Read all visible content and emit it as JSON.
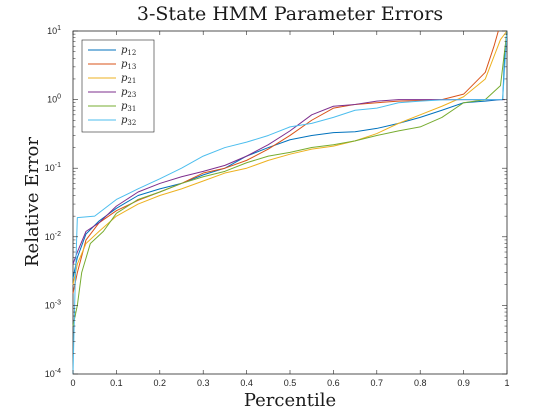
{
  "chart_data": {
    "type": "line",
    "title": "3-State HMM Parameter Errors",
    "xlabel": "Percentile",
    "ylabel": "Relative Error",
    "xlim": [
      0,
      1
    ],
    "ylim": [
      0.0001,
      10
    ],
    "yscale": "log",
    "grid": false,
    "legend_position": "top-left",
    "x_ticks": [
      "0",
      "0.1",
      "0.2",
      "0.3",
      "0.4",
      "0.5",
      "0.6",
      "0.7",
      "0.8",
      "0.9",
      "1"
    ],
    "y_ticks": [
      {
        "base": "10",
        "exp": "1"
      },
      {
        "base": "10",
        "exp": "0"
      },
      {
        "base": "10",
        "exp": "-1"
      },
      {
        "base": "10",
        "exp": "-2"
      },
      {
        "base": "10",
        "exp": "-3"
      },
      {
        "base": "10",
        "exp": "-4"
      }
    ],
    "series": [
      {
        "name": "p",
        "sub": "12",
        "color": "#0072BD",
        "points": [
          [
            0,
            0.0025
          ],
          [
            0.01,
            0.005
          ],
          [
            0.03,
            0.011
          ],
          [
            0.06,
            0.017
          ],
          [
            0.1,
            0.026
          ],
          [
            0.15,
            0.04
          ],
          [
            0.2,
            0.05
          ],
          [
            0.25,
            0.06
          ],
          [
            0.3,
            0.08
          ],
          [
            0.35,
            0.1
          ],
          [
            0.4,
            0.15
          ],
          [
            0.45,
            0.2
          ],
          [
            0.5,
            0.26
          ],
          [
            0.55,
            0.3
          ],
          [
            0.6,
            0.33
          ],
          [
            0.65,
            0.34
          ],
          [
            0.7,
            0.38
          ],
          [
            0.75,
            0.45
          ],
          [
            0.8,
            0.55
          ],
          [
            0.85,
            0.7
          ],
          [
            0.9,
            0.9
          ],
          [
            0.95,
            0.95
          ],
          [
            0.985,
            1.0
          ],
          [
            0.99,
            1.0
          ],
          [
            0.995,
            5
          ],
          [
            1.0,
            10
          ]
        ]
      },
      {
        "name": "p",
        "sub": "13",
        "color": "#D95319",
        "points": [
          [
            0,
            0.0015
          ],
          [
            0.01,
            0.003
          ],
          [
            0.03,
            0.009
          ],
          [
            0.06,
            0.016
          ],
          [
            0.1,
            0.024
          ],
          [
            0.15,
            0.034
          ],
          [
            0.2,
            0.045
          ],
          [
            0.25,
            0.06
          ],
          [
            0.3,
            0.085
          ],
          [
            0.35,
            0.1
          ],
          [
            0.4,
            0.13
          ],
          [
            0.45,
            0.19
          ],
          [
            0.5,
            0.3
          ],
          [
            0.55,
            0.5
          ],
          [
            0.6,
            0.75
          ],
          [
            0.65,
            0.85
          ],
          [
            0.7,
            0.9
          ],
          [
            0.75,
            0.95
          ],
          [
            0.8,
            0.97
          ],
          [
            0.85,
            1.0
          ],
          [
            0.9,
            1.2
          ],
          [
            0.95,
            2.5
          ],
          [
            0.97,
            6
          ],
          [
            0.98,
            10
          ]
        ]
      },
      {
        "name": "p",
        "sub": "21",
        "color": "#EDB120",
        "points": [
          [
            0,
            0.002
          ],
          [
            0.01,
            0.004
          ],
          [
            0.03,
            0.008
          ],
          [
            0.06,
            0.012
          ],
          [
            0.1,
            0.02
          ],
          [
            0.15,
            0.03
          ],
          [
            0.2,
            0.04
          ],
          [
            0.25,
            0.05
          ],
          [
            0.3,
            0.065
          ],
          [
            0.35,
            0.085
          ],
          [
            0.4,
            0.1
          ],
          [
            0.45,
            0.13
          ],
          [
            0.5,
            0.16
          ],
          [
            0.55,
            0.19
          ],
          [
            0.6,
            0.21
          ],
          [
            0.65,
            0.25
          ],
          [
            0.7,
            0.32
          ],
          [
            0.75,
            0.45
          ],
          [
            0.8,
            0.6
          ],
          [
            0.85,
            0.8
          ],
          [
            0.9,
            1.1
          ],
          [
            0.95,
            2.0
          ],
          [
            0.985,
            7.5
          ],
          [
            1.0,
            10
          ]
        ]
      },
      {
        "name": "p",
        "sub": "23",
        "color": "#7E2F8E",
        "points": [
          [
            0,
            0.004
          ],
          [
            0.01,
            0.006
          ],
          [
            0.03,
            0.012
          ],
          [
            0.06,
            0.016
          ],
          [
            0.1,
            0.028
          ],
          [
            0.15,
            0.045
          ],
          [
            0.2,
            0.06
          ],
          [
            0.25,
            0.075
          ],
          [
            0.3,
            0.09
          ],
          [
            0.35,
            0.11
          ],
          [
            0.4,
            0.15
          ],
          [
            0.45,
            0.22
          ],
          [
            0.5,
            0.35
          ],
          [
            0.55,
            0.6
          ],
          [
            0.6,
            0.8
          ],
          [
            0.65,
            0.85
          ],
          [
            0.7,
            0.95
          ],
          [
            0.75,
            1.0
          ],
          [
            0.8,
            1.0
          ],
          [
            0.85,
            1.0
          ],
          [
            0.9,
            1.0
          ],
          [
            0.95,
            1.0
          ],
          [
            0.99,
            1.0
          ],
          [
            0.995,
            1.0
          ]
        ]
      },
      {
        "name": "p",
        "sub": "31",
        "color": "#77AC30",
        "points": [
          [
            0,
            0.0005
          ],
          [
            0.01,
            0.001
          ],
          [
            0.02,
            0.003
          ],
          [
            0.04,
            0.008
          ],
          [
            0.07,
            0.012
          ],
          [
            0.1,
            0.022
          ],
          [
            0.15,
            0.035
          ],
          [
            0.2,
            0.045
          ],
          [
            0.25,
            0.06
          ],
          [
            0.3,
            0.075
          ],
          [
            0.35,
            0.09
          ],
          [
            0.4,
            0.12
          ],
          [
            0.45,
            0.15
          ],
          [
            0.5,
            0.17
          ],
          [
            0.55,
            0.2
          ],
          [
            0.6,
            0.22
          ],
          [
            0.65,
            0.25
          ],
          [
            0.7,
            0.3
          ],
          [
            0.75,
            0.35
          ],
          [
            0.8,
            0.4
          ],
          [
            0.85,
            0.55
          ],
          [
            0.9,
            0.9
          ],
          [
            0.95,
            1.0
          ],
          [
            0.985,
            1.6
          ],
          [
            1.0,
            10
          ]
        ]
      },
      {
        "name": "p",
        "sub": "32",
        "color": "#4DBEEE",
        "points": [
          [
            0,
            0.0001
          ],
          [
            0.005,
            0.002
          ],
          [
            0.01,
            0.019
          ],
          [
            0.05,
            0.02
          ],
          [
            0.1,
            0.035
          ],
          [
            0.15,
            0.05
          ],
          [
            0.2,
            0.07
          ],
          [
            0.25,
            0.1
          ],
          [
            0.3,
            0.15
          ],
          [
            0.35,
            0.2
          ],
          [
            0.4,
            0.24
          ],
          [
            0.45,
            0.3
          ],
          [
            0.5,
            0.4
          ],
          [
            0.55,
            0.45
          ],
          [
            0.6,
            0.55
          ],
          [
            0.65,
            0.7
          ],
          [
            0.7,
            0.75
          ],
          [
            0.75,
            0.9
          ],
          [
            0.8,
            0.95
          ],
          [
            0.85,
            0.99
          ],
          [
            0.9,
            1.0
          ],
          [
            0.95,
            1.0
          ],
          [
            0.99,
            1.0
          ],
          [
            1.0,
            10
          ]
        ]
      }
    ]
  }
}
